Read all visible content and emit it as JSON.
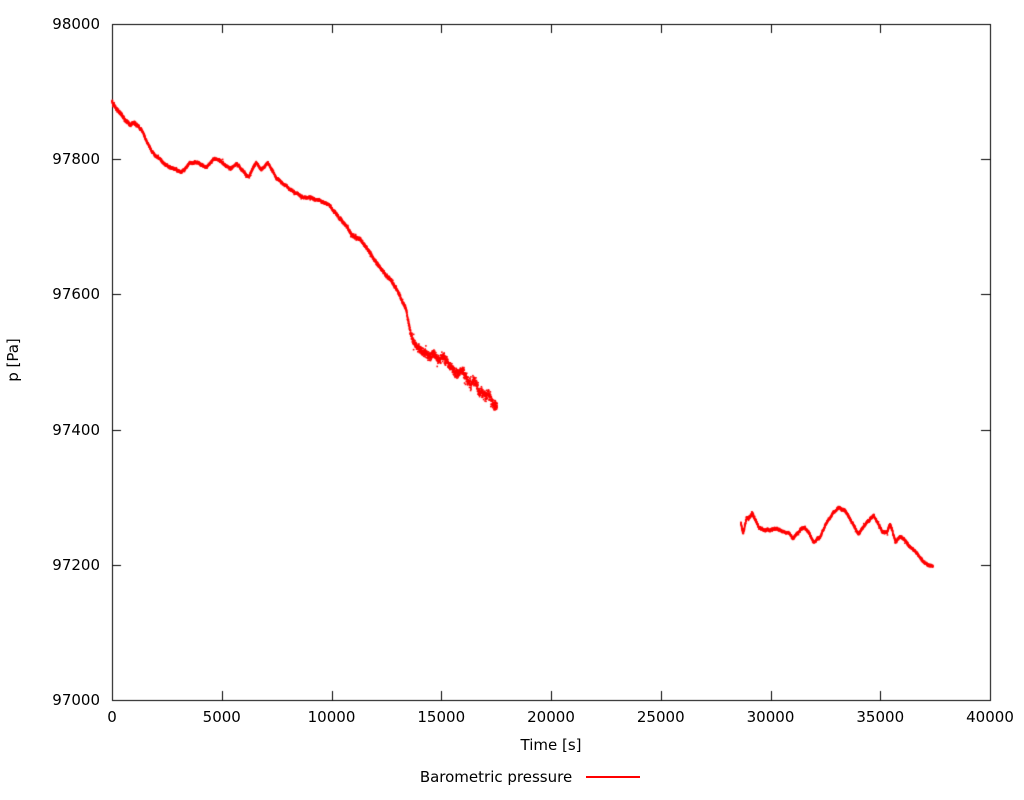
{
  "chart_data": {
    "type": "scatter",
    "title": "",
    "xlabel": "Time [s]",
    "ylabel": "p [Pa]",
    "xlim": [
      0,
      40000
    ],
    "ylim": [
      97000,
      98000
    ],
    "x_ticks": [
      0,
      5000,
      10000,
      15000,
      20000,
      25000,
      30000,
      35000,
      40000
    ],
    "x_tick_labels": [
      "0",
      "5000",
      "10000",
      "15000",
      "20000",
      "25000",
      "30000",
      "35000",
      "40000"
    ],
    "y_ticks": [
      97000,
      97200,
      97400,
      97600,
      97800,
      98000
    ],
    "y_tick_labels": [
      "97000",
      "97200",
      "97400",
      "97600",
      "97800",
      "98000"
    ],
    "grid": false,
    "legend_position": "bottom-center",
    "axis_color": "#000000",
    "text_color": "#000000",
    "background_color": "#ffffff",
    "series": [
      {
        "name": "Barometric pressure",
        "color": "#ff0000",
        "style": "dots",
        "segments": [
          {
            "comment": "points are [time_s, pressure_Pa, scatter_sigma_Pa]",
            "points": [
              [
                0,
                97886,
                5
              ],
              [
                200,
                97876,
                5
              ],
              [
                400,
                97868,
                4
              ],
              [
                600,
                97858,
                4
              ],
              [
                800,
                97850,
                4
              ],
              [
                1000,
                97854,
                4
              ],
              [
                1200,
                97849,
                4
              ],
              [
                1400,
                97842,
                3
              ],
              [
                1600,
                97826,
                3
              ],
              [
                1800,
                97814,
                3
              ],
              [
                2000,
                97806,
                3
              ],
              [
                2200,
                97800,
                3
              ],
              [
                2400,
                97795,
                3
              ],
              [
                2600,
                97790,
                3
              ],
              [
                2800,
                97786,
                3
              ],
              [
                3100,
                97782,
                3
              ],
              [
                3300,
                97785,
                3
              ],
              [
                3500,
                97793,
                3
              ],
              [
                3800,
                97796,
                3
              ],
              [
                4100,
                97791,
                3
              ],
              [
                4300,
                97790,
                3
              ],
              [
                4600,
                97799,
                3
              ],
              [
                4900,
                97797,
                3
              ],
              [
                5100,
                97792,
                3
              ],
              [
                5400,
                97785,
                3
              ],
              [
                5700,
                97792,
                3
              ],
              [
                6000,
                97781,
                3
              ],
              [
                6250,
                97774,
                3
              ],
              [
                6550,
                97794,
                3
              ],
              [
                6800,
                97785,
                3
              ],
              [
                7100,
                97797,
                3
              ],
              [
                7300,
                97783,
                3
              ],
              [
                7500,
                97771,
                3
              ],
              [
                7800,
                97763,
                3
              ],
              [
                8100,
                97756,
                3
              ],
              [
                8400,
                97750,
                3
              ],
              [
                8700,
                97745,
                3
              ],
              [
                9000,
                97744,
                3
              ],
              [
                9300,
                97741,
                3
              ],
              [
                9600,
                97738,
                3
              ],
              [
                9900,
                97732,
                3
              ],
              [
                10150,
                97720,
                4
              ],
              [
                10400,
                97710,
                4
              ],
              [
                10650,
                97700,
                4
              ],
              [
                10900,
                97690,
                4
              ],
              [
                11100,
                97685,
                4
              ],
              [
                11300,
                97680,
                4
              ],
              [
                11500,
                97672,
                4
              ],
              [
                11750,
                97660,
                4
              ],
              [
                12000,
                97650,
                4
              ],
              [
                12200,
                97640,
                4
              ],
              [
                12500,
                97628,
                4
              ],
              [
                12700,
                97622,
                4
              ],
              [
                13000,
                97605,
                5
              ],
              [
                13200,
                97590,
                5
              ],
              [
                13400,
                97578,
                6
              ],
              [
                13550,
                97550,
                8
              ],
              [
                13700,
                97532,
                9
              ],
              [
                13900,
                97524,
                9
              ],
              [
                14200,
                97515,
                10
              ],
              [
                14500,
                97508,
                10
              ],
              [
                14700,
                97512,
                10
              ],
              [
                14900,
                97502,
                10
              ],
              [
                15100,
                97510,
                11
              ],
              [
                15300,
                97498,
                11
              ],
              [
                15550,
                97488,
                11
              ],
              [
                15800,
                97482,
                11
              ],
              [
                15950,
                97487,
                11
              ],
              [
                16150,
                97476,
                12
              ],
              [
                16350,
                97466,
                12
              ],
              [
                16500,
                97474,
                12
              ],
              [
                16750,
                97458,
                12
              ],
              [
                17000,
                97450,
                12
              ],
              [
                17150,
                97455,
                12
              ],
              [
                17350,
                97440,
                13
              ],
              [
                17550,
                97436,
                12
              ]
            ]
          },
          {
            "points": [
              [
                28650,
                97262,
                4
              ],
              [
                28750,
                97247,
                4
              ],
              [
                28900,
                97268,
                4
              ],
              [
                29150,
                97276,
                4
              ],
              [
                29450,
                97257,
                3
              ],
              [
                29700,
                97250,
                3
              ],
              [
                30000,
                97250,
                3
              ],
              [
                30300,
                97253,
                3
              ],
              [
                30600,
                97250,
                3
              ],
              [
                30850,
                97246,
                3
              ],
              [
                31050,
                97240,
                3
              ],
              [
                31300,
                97250,
                3
              ],
              [
                31500,
                97257,
                3
              ],
              [
                31750,
                97247,
                3
              ],
              [
                31950,
                97235,
                3
              ],
              [
                32200,
                97239,
                3
              ],
              [
                32450,
                97254,
                3
              ],
              [
                32700,
                97268,
                3
              ],
              [
                32900,
                97278,
                3
              ],
              [
                33100,
                97284,
                3
              ],
              [
                33400,
                97282,
                3
              ],
              [
                33650,
                97268,
                3
              ],
              [
                33900,
                97252,
                3
              ],
              [
                34000,
                97247,
                3
              ],
              [
                34250,
                97258,
                3
              ],
              [
                34500,
                97266,
                3
              ],
              [
                34700,
                97275,
                3
              ],
              [
                34950,
                97258,
                3
              ],
              [
                35100,
                97247,
                3
              ],
              [
                35300,
                97246,
                3
              ],
              [
                35450,
                97260,
                3
              ],
              [
                35700,
                97232,
                3
              ],
              [
                35900,
                97240,
                3
              ],
              [
                36150,
                97235,
                3
              ],
              [
                36400,
                97224,
                3
              ],
              [
                36650,
                97216,
                3
              ],
              [
                36900,
                97208,
                3
              ],
              [
                37150,
                97200,
                3
              ],
              [
                37400,
                97196,
                3
              ]
            ]
          }
        ]
      }
    ],
    "legend": {
      "label": "Barometric pressure",
      "line_color": "#ff0000"
    }
  }
}
